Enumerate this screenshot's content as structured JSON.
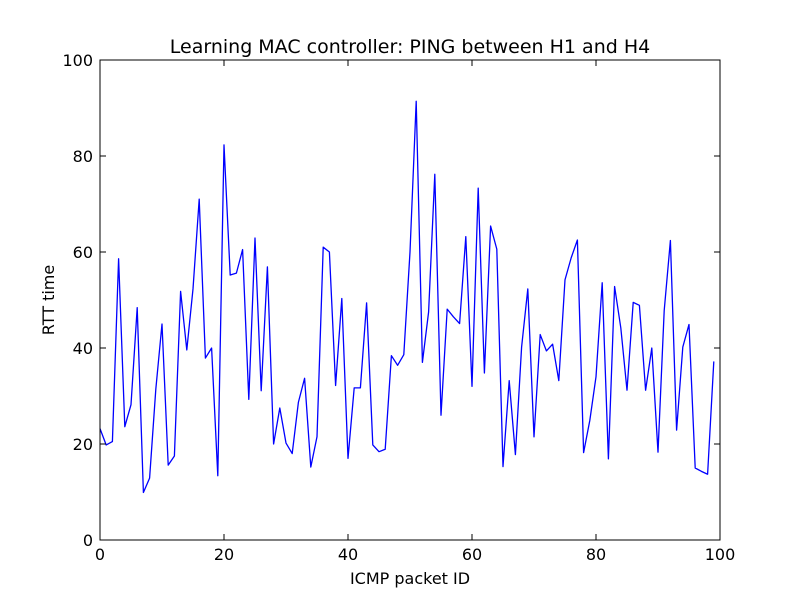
{
  "chart_data": {
    "type": "line",
    "title": "Learning MAC controller: PING between H1 and H4",
    "xlabel": "ICMP packet ID",
    "ylabel": "RTT time",
    "xlim": [
      0,
      100
    ],
    "ylim": [
      0,
      100
    ],
    "x_ticks": [
      "0",
      "20",
      "40",
      "60",
      "80",
      "100"
    ],
    "y_ticks": [
      "0",
      "20",
      "40",
      "60",
      "80",
      "100"
    ],
    "grid": false,
    "line_color": "#0000ff",
    "x": [
      0,
      1,
      2,
      3,
      4,
      5,
      6,
      7,
      8,
      9,
      10,
      11,
      12,
      13,
      14,
      15,
      16,
      17,
      18,
      19,
      20,
      21,
      22,
      23,
      24,
      25,
      26,
      27,
      28,
      29,
      30,
      31,
      32,
      33,
      34,
      35,
      36,
      37,
      38,
      39,
      40,
      41,
      42,
      43,
      44,
      45,
      46,
      47,
      48,
      49,
      50,
      51,
      52,
      53,
      54,
      55,
      56,
      57,
      58,
      59,
      60,
      61,
      62,
      63,
      64,
      65,
      66,
      67,
      68,
      69,
      70,
      71,
      72,
      73,
      74,
      75,
      76,
      77,
      78,
      79,
      80,
      81,
      82,
      83,
      84,
      85,
      86,
      87,
      88,
      89,
      90,
      91,
      92,
      93,
      94,
      95,
      96,
      97,
      98,
      99
    ],
    "values": [
      23.2,
      19.8,
      20.5,
      58.6,
      23.6,
      28.2,
      48.4,
      9.9,
      12.9,
      31.4,
      45,
      15.6,
      17.5,
      51.8,
      39.6,
      52.3,
      71,
      37.9,
      40,
      13.4,
      82.3,
      55.2,
      55.6,
      60.5,
      29.3,
      62.9,
      31.1,
      56.9,
      20,
      27.5,
      20.2,
      18,
      28.7,
      33.7,
      15.2,
      21.5,
      61,
      60,
      32.2,
      50.3,
      17,
      31.7,
      31.7,
      49.4,
      19.8,
      18.4,
      18.9,
      38.4,
      36.4,
      38.6,
      60,
      91.4,
      37,
      47.5,
      76.2,
      26,
      48.1,
      46.5,
      45.1,
      63.2,
      32,
      73.3,
      34.8,
      65.4,
      60.6,
      15.3,
      33.2,
      17.8,
      40.2,
      52.3,
      21.5,
      42.8,
      39.4,
      40.8,
      33.2,
      54.2,
      58.8,
      62.5,
      18.2,
      24.9,
      34,
      53.6,
      16.9,
      52.8,
      44.2,
      31.2,
      49.5,
      48.9,
      31.2,
      40,
      18.3,
      47.8,
      62.4,
      22.9,
      40.2,
      44.9,
      15,
      14.3,
      13.7,
      37.2
    ]
  }
}
